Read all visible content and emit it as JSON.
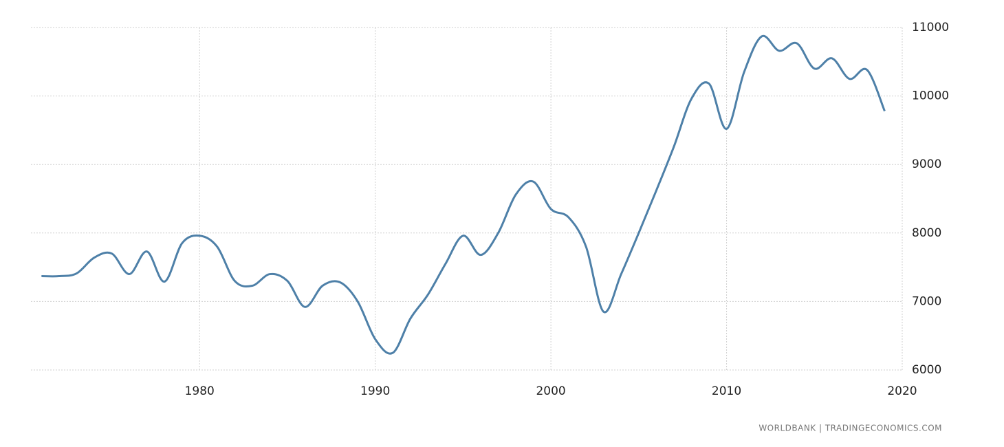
{
  "chart_data": {
    "type": "line",
    "x": [
      1971,
      1972,
      1973,
      1974,
      1975,
      1976,
      1977,
      1978,
      1979,
      1980,
      1981,
      1982,
      1983,
      1984,
      1985,
      1986,
      1987,
      1988,
      1989,
      1990,
      1991,
      1992,
      1993,
      1994,
      1995,
      1996,
      1997,
      1998,
      1999,
      2000,
      2001,
      2002,
      2003,
      2004,
      2005,
      2006,
      2007,
      2008,
      2009,
      2010,
      2011,
      2012,
      2013,
      2014,
      2015,
      2016,
      2017,
      2018,
      2019
    ],
    "series": [
      {
        "color": "#4e80a8",
        "values": [
          7370,
          7370,
          7410,
          7640,
          7700,
          7400,
          7730,
          7290,
          7850,
          7960,
          7800,
          7300,
          7230,
          7400,
          7300,
          6920,
          7230,
          7280,
          7000,
          6450,
          6250,
          6750,
          7100,
          7550,
          7960,
          7680,
          8000,
          8560,
          8750,
          8350,
          8230,
          7800,
          6850,
          7400,
          8000,
          8620,
          9260,
          9960,
          10180,
          9520,
          10350,
          10870,
          10660,
          10770,
          10400,
          10550,
          10250,
          10380,
          9780
        ]
      }
    ],
    "xlim": [
      1970.4,
      2020
    ],
    "ylim": [
      6000,
      11000
    ],
    "xticks": [
      1980,
      1990,
      2000,
      2010,
      2020
    ],
    "yticks": [
      6000,
      7000,
      8000,
      9000,
      10000,
      11000
    ],
    "grid": true,
    "source": "WORLDBANK | TRADINGECONOMICS.COM"
  }
}
